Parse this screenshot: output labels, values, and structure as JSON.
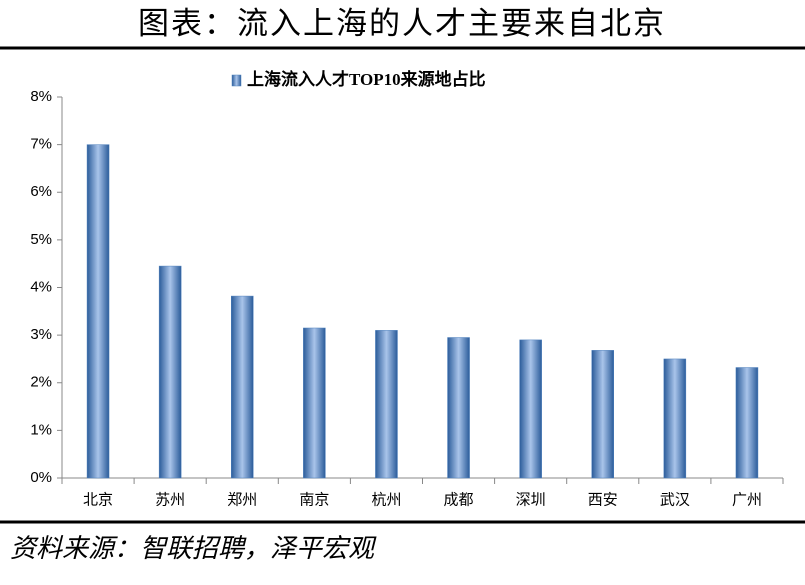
{
  "chart_data": {
    "type": "bar",
    "title": "图表：流入上海的人才主要来自北京",
    "categories": [
      "北京",
      "苏州",
      "郑州",
      "南京",
      "杭州",
      "成都",
      "深圳",
      "西安",
      "武汉",
      "广州"
    ],
    "series": [
      {
        "name": "上海流入人才TOP10来源地占比",
        "color": "#4f81bd",
        "values": [
          7.0,
          4.45,
          3.82,
          3.15,
          3.1,
          2.95,
          2.9,
          2.68,
          2.5,
          2.32
        ]
      }
    ],
    "ylim": [
      0,
      8
    ],
    "yticks": [
      {
        "value": 0,
        "label": "0%"
      },
      {
        "value": 1,
        "label": "1%"
      },
      {
        "value": 2,
        "label": "2%"
      },
      {
        "value": 3,
        "label": "3%"
      },
      {
        "value": 4,
        "label": "4%"
      },
      {
        "value": 5,
        "label": "5%"
      },
      {
        "value": 6,
        "label": "6%"
      },
      {
        "value": 7,
        "label": "7%"
      },
      {
        "value": 8,
        "label": "8%"
      }
    ],
    "grid": false,
    "legend": "top",
    "source": "资料来源：智联招聘，泽平宏观"
  }
}
